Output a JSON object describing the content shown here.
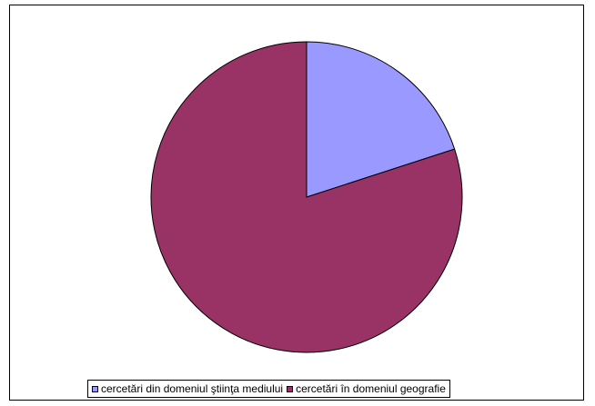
{
  "chart_data": {
    "type": "pie",
    "title": "",
    "slices": [
      {
        "name": "cercetări din domeniul ştiinţa mediului",
        "value": 20,
        "color": "#9999FF"
      },
      {
        "name": "cercetări în domeniul geografie",
        "value": 80,
        "color": "#993366"
      }
    ],
    "legend_position": "bottom"
  }
}
